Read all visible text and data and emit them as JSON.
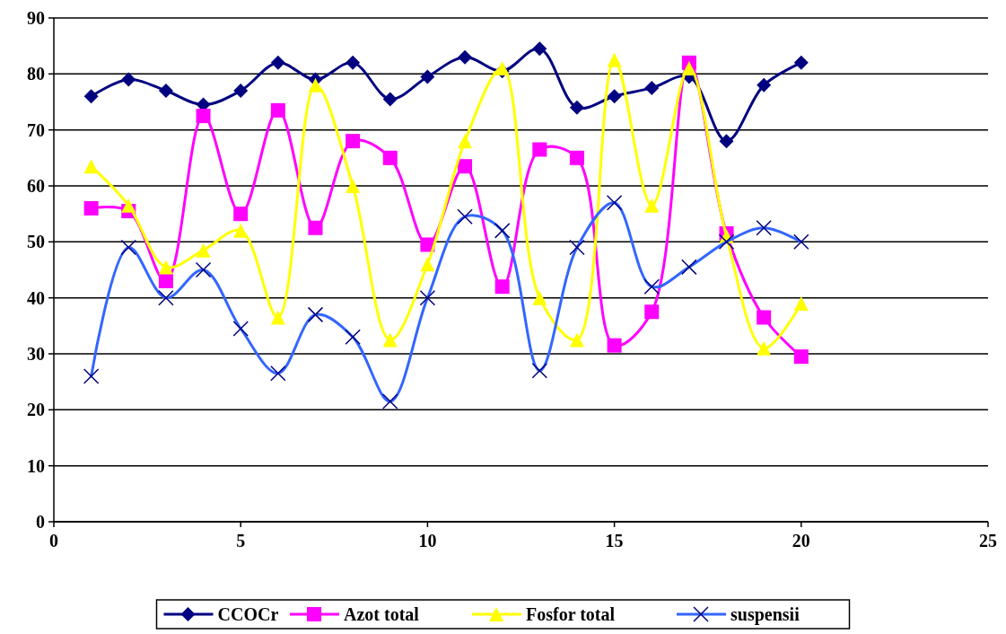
{
  "chart_data": {
    "type": "line",
    "x": [
      1,
      2,
      3,
      4,
      5,
      6,
      7,
      8,
      9,
      10,
      11,
      12,
      13,
      14,
      15,
      16,
      17,
      18,
      19,
      20
    ],
    "series": [
      {
        "name": "CCOCr",
        "color": "#000080",
        "marker": "diamond",
        "values": [
          76,
          79,
          77,
          74.5,
          77,
          82,
          79,
          82,
          75.5,
          79.5,
          83,
          80.5,
          84.5,
          74,
          76,
          77.5,
          79.5,
          68,
          78,
          82
        ]
      },
      {
        "name": "Azot total",
        "color": "#ff00ff",
        "marker": "square",
        "values": [
          56,
          55.5,
          43,
          72.5,
          55,
          73.5,
          52.5,
          68,
          65,
          49.5,
          63.5,
          42,
          66.5,
          65,
          31.5,
          37.5,
          82,
          51.5,
          36.5,
          29.5
        ]
      },
      {
        "name": "Fosfor total",
        "color": "#ffff00",
        "marker": "triangle",
        "values": [
          63.5,
          56.5,
          45.5,
          48.5,
          52,
          36.5,
          78,
          60,
          32.5,
          46,
          68,
          81,
          40,
          32.5,
          82.5,
          56.5,
          81,
          51,
          31,
          39
        ]
      },
      {
        "name": "suspensii",
        "color": "#3366ff",
        "marker": "cross",
        "values": [
          26,
          49,
          40,
          45,
          34.5,
          26.5,
          37,
          33,
          21.5,
          40,
          54.5,
          52,
          27,
          49,
          57,
          42,
          45.5,
          50,
          52.5,
          50
        ]
      }
    ],
    "xlim": [
      0,
      25
    ],
    "xticks": [
      0,
      5,
      10,
      15,
      20,
      25
    ],
    "ylim": [
      0,
      90
    ],
    "yticks": [
      0,
      10,
      20,
      30,
      40,
      50,
      60,
      70,
      80,
      90
    ],
    "grid": "y",
    "legend": "bottom",
    "line_style": "solid"
  }
}
